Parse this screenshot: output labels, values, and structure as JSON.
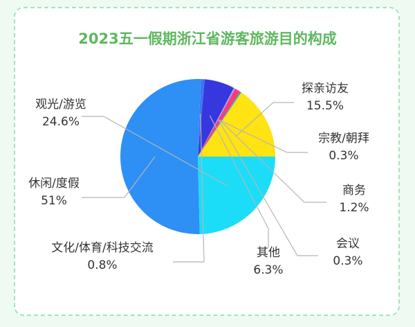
{
  "chart_data": {
    "type": "pie",
    "title": "2023五一假期浙江省游客旅游目的构成",
    "slices": [
      {
        "name": "探亲访友",
        "pct_label": "15.5%",
        "value": 15.5,
        "color": "#ffe313"
      },
      {
        "name": "宗教/朝拜",
        "pct_label": "0.3%",
        "value": 0.3,
        "color": "#1fb8c4"
      },
      {
        "name": "商务",
        "pct_label": "1.2%",
        "value": 1.2,
        "color": "#ff3b74"
      },
      {
        "name": "会议",
        "pct_label": "0.3%",
        "value": 0.3,
        "color": "#a0a0ff"
      },
      {
        "name": "其他",
        "pct_label": "6.3%",
        "value": 6.3,
        "color": "#3737e0"
      },
      {
        "name": "文化/体育/科技交流",
        "pct_label": "0.8%",
        "value": 0.8,
        "color": "#3c78f0"
      },
      {
        "name": "休闲/度假",
        "pct_label": "51%",
        "value": 51,
        "color": "#2e8ff5"
      },
      {
        "name": "观光/游览",
        "pct_label": "24.6%",
        "value": 24.6,
        "color": "#1cddf7"
      }
    ]
  }
}
